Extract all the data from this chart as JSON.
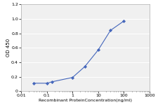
{
  "x": [
    0.03,
    0.1,
    0.16,
    1,
    3,
    10,
    30,
    100
  ],
  "y": [
    0.11,
    0.11,
    0.13,
    0.19,
    0.34,
    0.57,
    0.84,
    0.97
  ],
  "xlim": [
    0.01,
    1000
  ],
  "ylim": [
    0,
    1.2
  ],
  "yticks": [
    0,
    0.2,
    0.4,
    0.6,
    0.8,
    1.0,
    1.2
  ],
  "xticks": [
    0.01,
    0.1,
    1,
    10,
    100,
    1000
  ],
  "xtick_labels": [
    "0.01",
    "0.1",
    "1",
    "10",
    "100",
    "1000"
  ],
  "xlabel": "Recombinant ProteinConcentration(ng/ml)",
  "ylabel": "OD 450",
  "line_color": "#4466bb",
  "marker": "D",
  "marker_size": 2.2,
  "line_width": 0.8,
  "bg_color": "#f0f0f0",
  "grid_color": "#ffffff",
  "title": ""
}
